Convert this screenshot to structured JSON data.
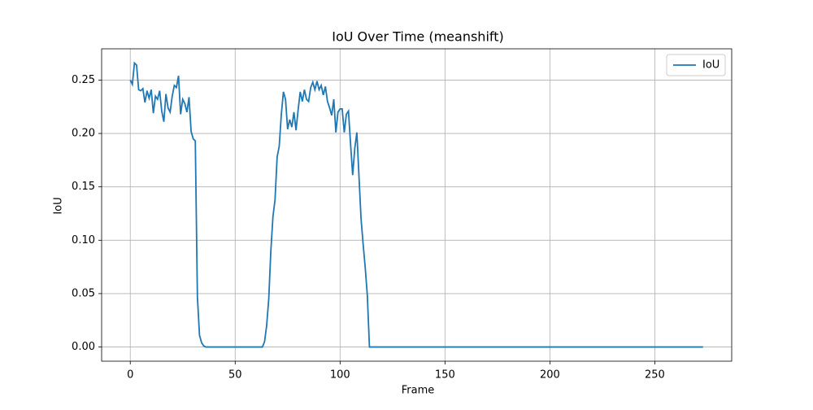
{
  "chart_data": {
    "type": "line",
    "title": "IoU Over Time (meanshift)",
    "xlabel": "Frame",
    "ylabel": "IoU",
    "x": [
      0,
      1,
      2,
      3,
      4,
      5,
      6,
      7,
      8,
      9,
      10,
      11,
      12,
      13,
      14,
      15,
      16,
      17,
      18,
      19,
      20,
      21,
      22,
      23,
      24,
      25,
      26,
      27,
      28,
      29,
      30,
      31,
      32,
      33,
      34,
      35,
      36,
      37,
      38,
      39,
      40,
      41,
      42,
      43,
      44,
      45,
      46,
      47,
      48,
      49,
      50,
      51,
      52,
      53,
      54,
      55,
      56,
      57,
      58,
      59,
      60,
      61,
      62,
      63,
      64,
      65,
      66,
      67,
      68,
      69,
      70,
      71,
      72,
      73,
      74,
      75,
      76,
      77,
      78,
      79,
      80,
      81,
      82,
      83,
      84,
      85,
      86,
      87,
      88,
      89,
      90,
      91,
      92,
      93,
      94,
      95,
      96,
      97,
      98,
      99,
      100,
      101,
      102,
      103,
      104,
      105,
      106,
      107,
      108,
      109,
      110,
      111,
      112,
      113,
      114,
      273
    ],
    "series": [
      {
        "name": "IoU",
        "color": "#1f77b4",
        "values": [
          0.25,
          0.246,
          0.266,
          0.264,
          0.241,
          0.24,
          0.242,
          0.229,
          0.24,
          0.233,
          0.241,
          0.219,
          0.235,
          0.232,
          0.24,
          0.221,
          0.211,
          0.237,
          0.224,
          0.22,
          0.235,
          0.245,
          0.243,
          0.254,
          0.218,
          0.232,
          0.228,
          0.22,
          0.234,
          0.202,
          0.195,
          0.193,
          0.047,
          0.011,
          0.004,
          0.001,
          0,
          0,
          0,
          0,
          0,
          0,
          0,
          0,
          0,
          0,
          0,
          0,
          0,
          0,
          0,
          0,
          0,
          0,
          0,
          0,
          0,
          0,
          0,
          0,
          0,
          0,
          0,
          0,
          0.005,
          0.02,
          0.045,
          0.09,
          0.122,
          0.138,
          0.178,
          0.188,
          0.218,
          0.239,
          0.232,
          0.204,
          0.213,
          0.206,
          0.22,
          0.203,
          0.222,
          0.239,
          0.23,
          0.241,
          0.232,
          0.23,
          0.243,
          0.248,
          0.241,
          0.249,
          0.241,
          0.245,
          0.236,
          0.244,
          0.23,
          0.224,
          0.217,
          0.232,
          0.201,
          0.22,
          0.223,
          0.223,
          0.201,
          0.218,
          0.221,
          0.19,
          0.161,
          0.186,
          0.201,
          0.16,
          0.12,
          0.096,
          0.074,
          0.048,
          0,
          0
        ]
      }
    ],
    "xlim": [
      -13.65,
      286.65
    ],
    "ylim": [
      -0.0133,
      0.2793
    ],
    "xticks": [
      0,
      50,
      100,
      150,
      200,
      250
    ],
    "yticks": [
      {
        "value": 0,
        "label": "0.00"
      },
      {
        "value": 0.05,
        "label": "0.05"
      },
      {
        "value": 0.1,
        "label": "0.10"
      },
      {
        "value": 0.15,
        "label": "0.15"
      },
      {
        "value": 0.2,
        "label": "0.20"
      },
      {
        "value": 0.25,
        "label": "0.25"
      }
    ],
    "grid": true,
    "legend": "upper-right"
  }
}
